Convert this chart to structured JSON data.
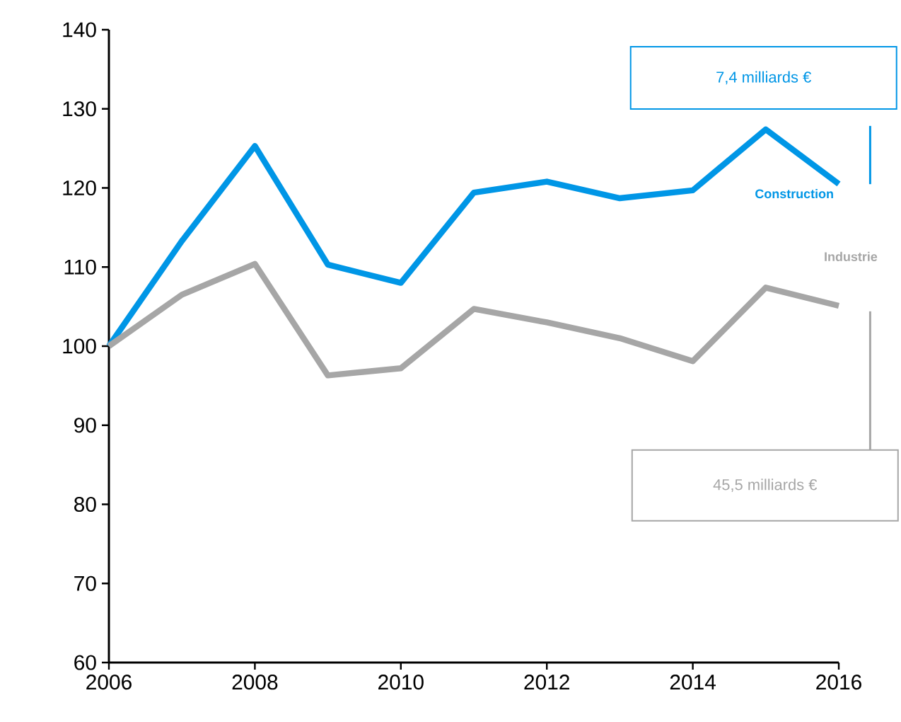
{
  "chart_data": {
    "type": "line",
    "x": [
      2006,
      2007,
      2008,
      2009,
      2010,
      2011,
      2012,
      2013,
      2014,
      2015,
      2016
    ],
    "series": [
      {
        "name": "Construction",
        "color": "#0096e6",
        "values": [
          100,
          113.3,
          125.3,
          110.3,
          108,
          119.4,
          120.8,
          118.7,
          119.7,
          127.4,
          120.5
        ]
      },
      {
        "name": "Industrie",
        "color": "#a6a6a6",
        "values": [
          100,
          106.5,
          110.4,
          96.3,
          97.2,
          104.7,
          103,
          101,
          98.1,
          107.4,
          105.1
        ]
      }
    ],
    "annotations": [
      "7,4 milliards €",
      "45,5 milliards €"
    ],
    "xlim": [
      2006,
      2016
    ],
    "xticks": [
      2006,
      2008,
      2010,
      2012,
      2014,
      2016
    ],
    "ylim": [
      60,
      140
    ],
    "yticks": [
      60,
      70,
      80,
      90,
      100,
      110,
      120,
      130,
      140
    ],
    "grid": false,
    "legend": false,
    "marker": "none",
    "line_style": "solid"
  }
}
